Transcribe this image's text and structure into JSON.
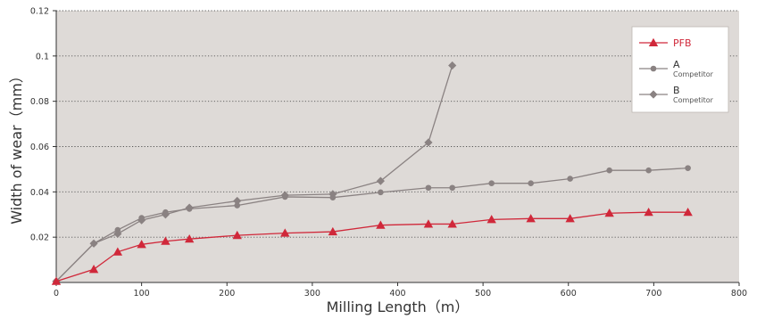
{
  "chart_data": {
    "type": "line",
    "xlabel": "Milling Length（m）",
    "ylabel": "Width of wear（mm）",
    "xlim": [
      0,
      800
    ],
    "ylim": [
      0,
      0.12
    ],
    "xticks": [
      0,
      100,
      200,
      300,
      400,
      500,
      600,
      700,
      800
    ],
    "yticks": [
      0.02,
      0.04,
      0.06,
      0.08,
      0.1,
      0.12
    ],
    "xtick_labels": [
      "0",
      "100",
      "200",
      "300",
      "400",
      "500",
      "600",
      "700",
      "800"
    ],
    "ytick_labels": [
      "0.02",
      "0.04",
      "0.06",
      "0.08",
      "0.1",
      "0.12"
    ],
    "grid": "horizontal dotted",
    "background": "#dedad7",
    "legend_position": "top-right",
    "series": [
      {
        "name": "PFB",
        "subtitle": "",
        "color": "#d0283a",
        "marker": "triangle",
        "x": [
          0,
          44,
          72,
          100,
          128,
          156,
          212,
          268,
          324,
          380,
          436,
          464,
          510,
          556,
          602,
          648,
          694,
          740
        ],
        "y": [
          0.0005,
          0.0058,
          0.0135,
          0.0168,
          0.0182,
          0.0192,
          0.0208,
          0.0218,
          0.0224,
          0.0253,
          0.0258,
          0.0258,
          0.0278,
          0.0282,
          0.0282,
          0.0306,
          0.031,
          0.031
        ]
      },
      {
        "name": "A",
        "subtitle": "Competitor",
        "color": "#8a8282",
        "marker": "circle",
        "x": [
          0,
          44,
          72,
          100,
          128,
          156,
          212,
          268,
          324,
          380,
          436,
          464,
          510,
          556,
          602,
          648,
          694,
          740
        ],
        "y": [
          0.0005,
          0.0172,
          0.0232,
          0.0285,
          0.031,
          0.0325,
          0.034,
          0.0378,
          0.0375,
          0.0398,
          0.0418,
          0.0418,
          0.0438,
          0.0438,
          0.0458,
          0.0495,
          0.0495,
          0.0505
        ]
      },
      {
        "name": "B",
        "subtitle": "Competitor",
        "color": "#8a8282",
        "marker": "diamond",
        "x": [
          0,
          44,
          72,
          100,
          128,
          156,
          212,
          268,
          324,
          380,
          436,
          464
        ],
        "y": [
          0.0005,
          0.0172,
          0.0215,
          0.0275,
          0.03,
          0.033,
          0.036,
          0.0385,
          0.039,
          0.0448,
          0.0618,
          0.0958
        ]
      }
    ]
  }
}
